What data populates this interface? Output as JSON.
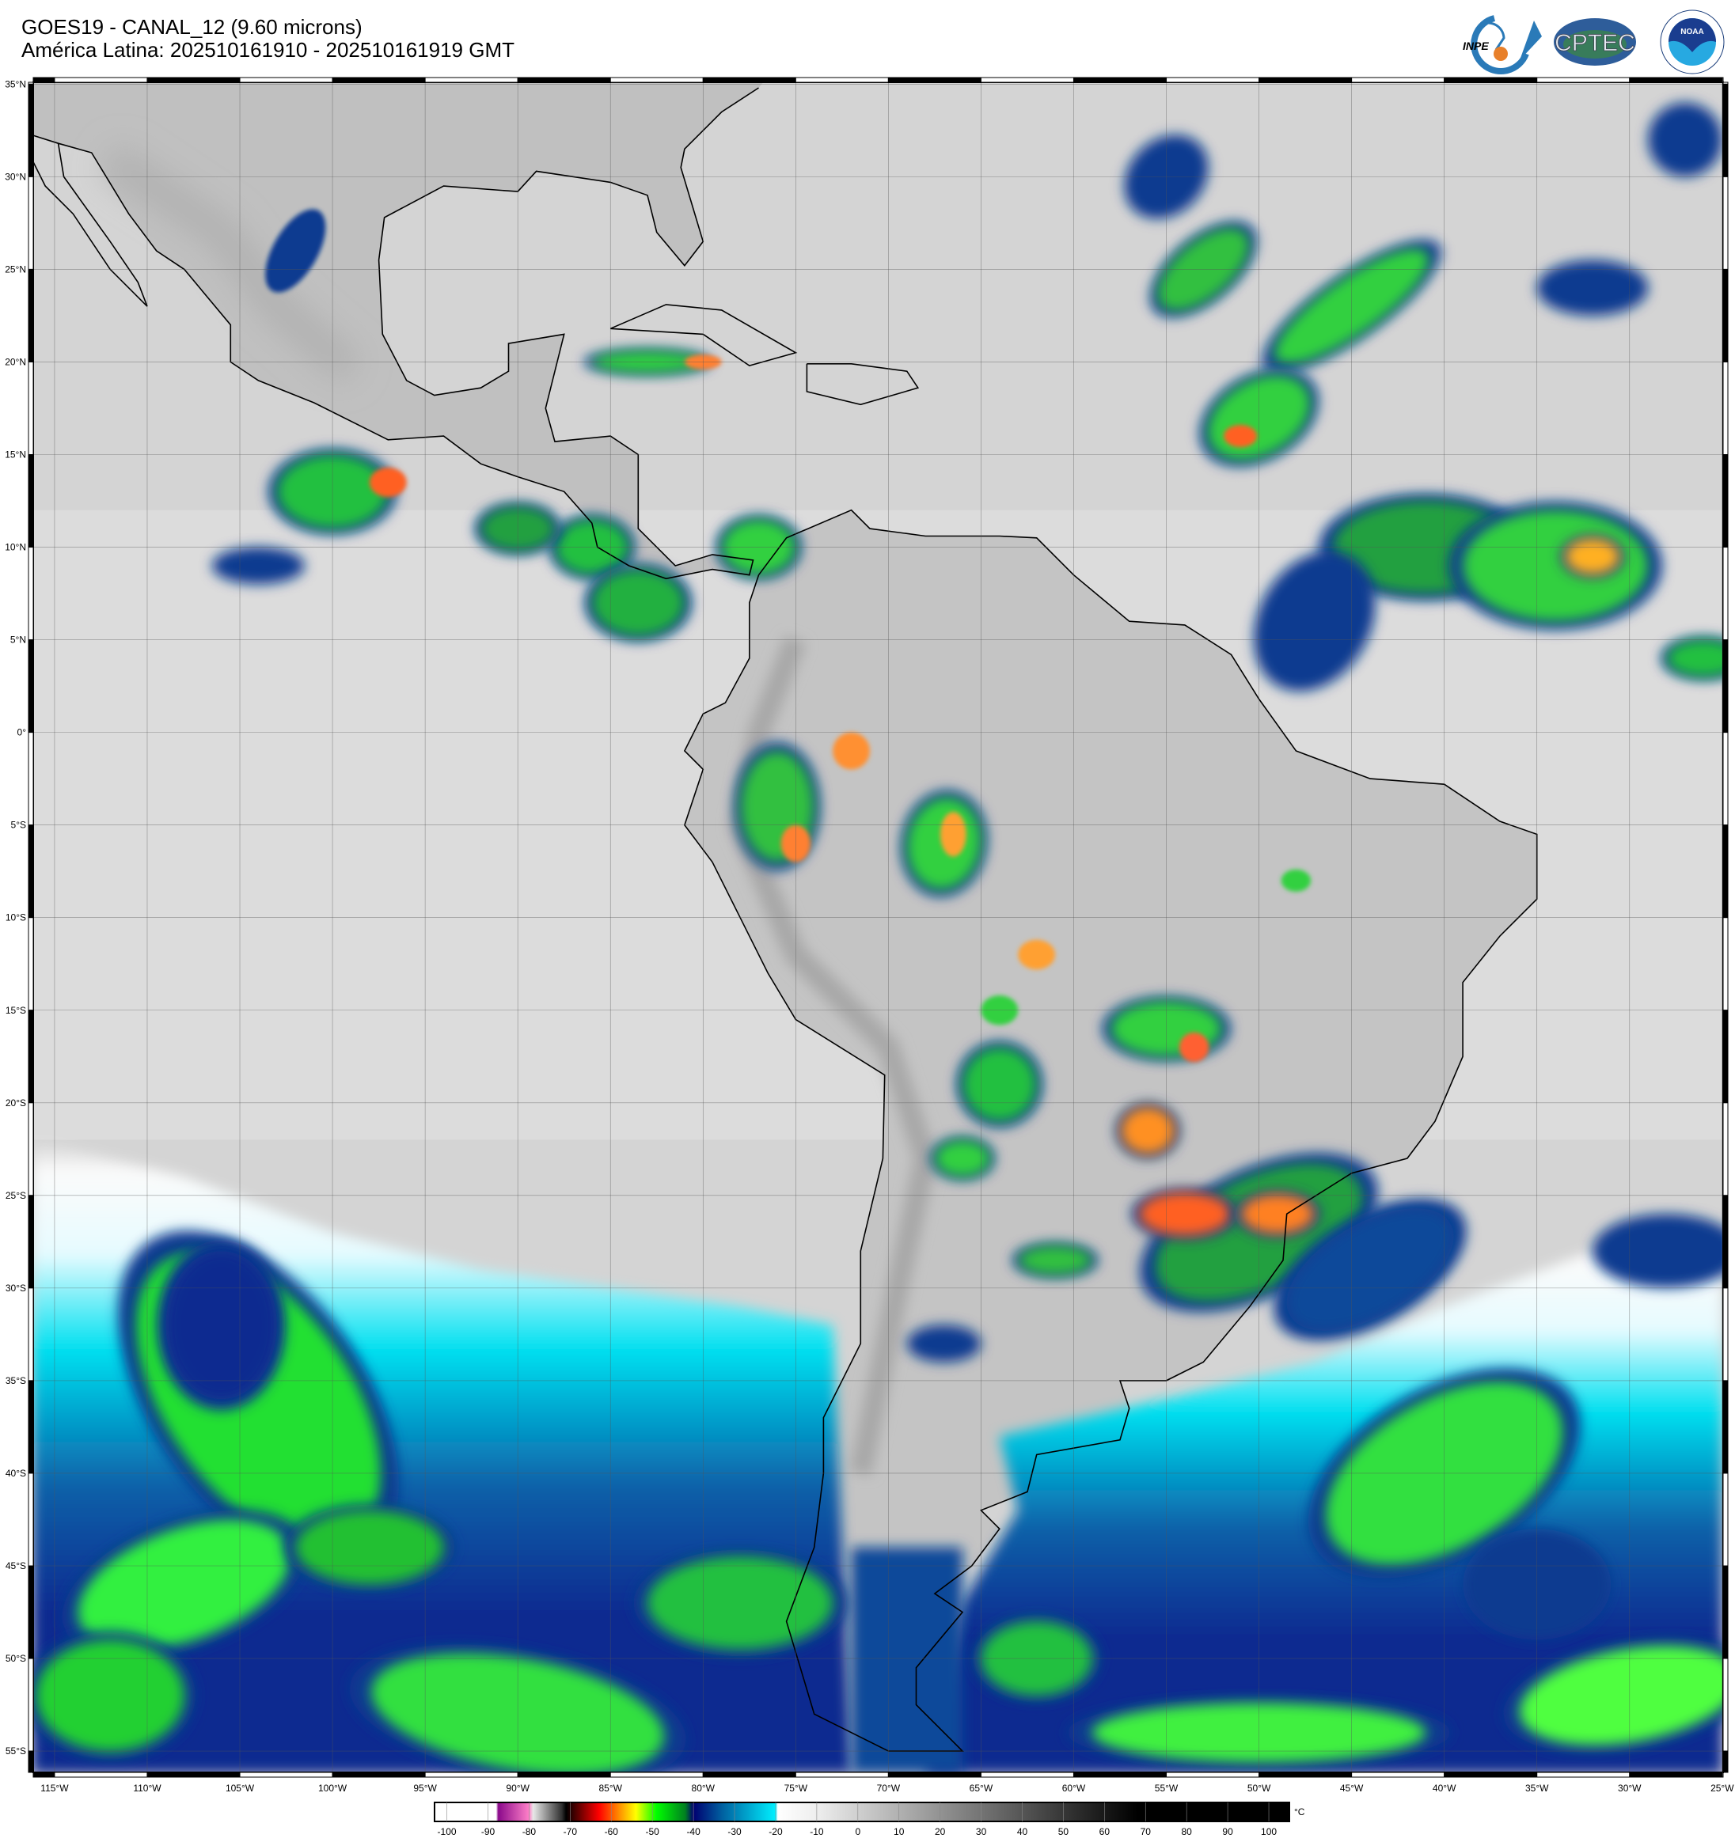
{
  "header": {
    "title_line1": "GOES19 - CANAL_12 (9.60 microns)",
    "title_line2": "América Latina: 202510161910 - 202510161919 GMT"
  },
  "logos": {
    "inpe": "INPE",
    "cptec": "CPTEC",
    "noaa": "NOAA",
    "noaa_ring": "NATIONAL OCEANIC AND ATMOSPHERIC ADMINISTRATION · U.S. DEPARTMENT OF COMMERCE"
  },
  "map": {
    "projection": "equirectangular",
    "lat_labels": [
      "35°N",
      "30°N",
      "25°N",
      "20°N",
      "15°N",
      "10°N",
      "5°N",
      "0°",
      "5°S",
      "10°S",
      "15°S",
      "20°S",
      "25°S",
      "30°S",
      "35°S",
      "40°S",
      "45°S",
      "50°S",
      "55°S"
    ],
    "lat_values": [
      35,
      30,
      25,
      20,
      15,
      10,
      5,
      0,
      -5,
      -10,
      -15,
      -20,
      -25,
      -30,
      -35,
      -40,
      -45,
      -50,
      -55
    ],
    "lon_labels": [
      "115°W",
      "110°W",
      "105°W",
      "100°W",
      "95°W",
      "90°W",
      "85°W",
      "80°W",
      "75°W",
      "70°W",
      "65°W",
      "60°W",
      "55°W",
      "50°W",
      "45°W",
      "40°W",
      "35°W",
      "30°W",
      "25°W"
    ],
    "lon_values": [
      -115,
      -110,
      -105,
      -100,
      -95,
      -90,
      -85,
      -80,
      -75,
      -70,
      -65,
      -60,
      -55,
      -50,
      -45,
      -40,
      -35,
      -30,
      -25
    ],
    "grid": true
  },
  "colorbar": {
    "unit": "°C",
    "ticks": [
      "-100",
      "-90",
      "-80",
      "-70",
      "-60",
      "-50",
      "-40",
      "-30",
      "-20",
      "-10",
      "0",
      "10",
      "20",
      "30",
      "40",
      "50",
      "60",
      "70",
      "80",
      "90",
      "100"
    ],
    "tick_values": [
      -100,
      -90,
      -80,
      -70,
      -60,
      -50,
      -40,
      -30,
      -20,
      -10,
      0,
      10,
      20,
      30,
      40,
      50,
      60,
      70,
      80,
      90,
      100
    ],
    "range": [
      -103,
      105
    ],
    "stops": [
      {
        "v": -103,
        "c": "#ffffff"
      },
      {
        "v": -88,
        "c": "#ffffff"
      },
      {
        "v": -87.5,
        "c": "#8b0a8b"
      },
      {
        "v": -80,
        "c": "#ff80c8"
      },
      {
        "v": -79,
        "c": "#e8e8e8"
      },
      {
        "v": -72,
        "c": "#303030"
      },
      {
        "v": -71,
        "c": "#000000"
      },
      {
        "v": -68,
        "c": "#600000"
      },
      {
        "v": -63,
        "c": "#ff0000"
      },
      {
        "v": -58,
        "c": "#ff9000"
      },
      {
        "v": -54,
        "c": "#ffff00"
      },
      {
        "v": -49,
        "c": "#00ff00"
      },
      {
        "v": -42,
        "c": "#008020"
      },
      {
        "v": -40,
        "c": "#000070"
      },
      {
        "v": -33,
        "c": "#0060a0"
      },
      {
        "v": -20,
        "c": "#00f0ff"
      },
      {
        "v": -19.5,
        "c": "#ffffff"
      },
      {
        "v": -10,
        "c": "#eeeeee"
      },
      {
        "v": 68,
        "c": "#000000"
      },
      {
        "v": 105,
        "c": "#000000"
      }
    ]
  }
}
